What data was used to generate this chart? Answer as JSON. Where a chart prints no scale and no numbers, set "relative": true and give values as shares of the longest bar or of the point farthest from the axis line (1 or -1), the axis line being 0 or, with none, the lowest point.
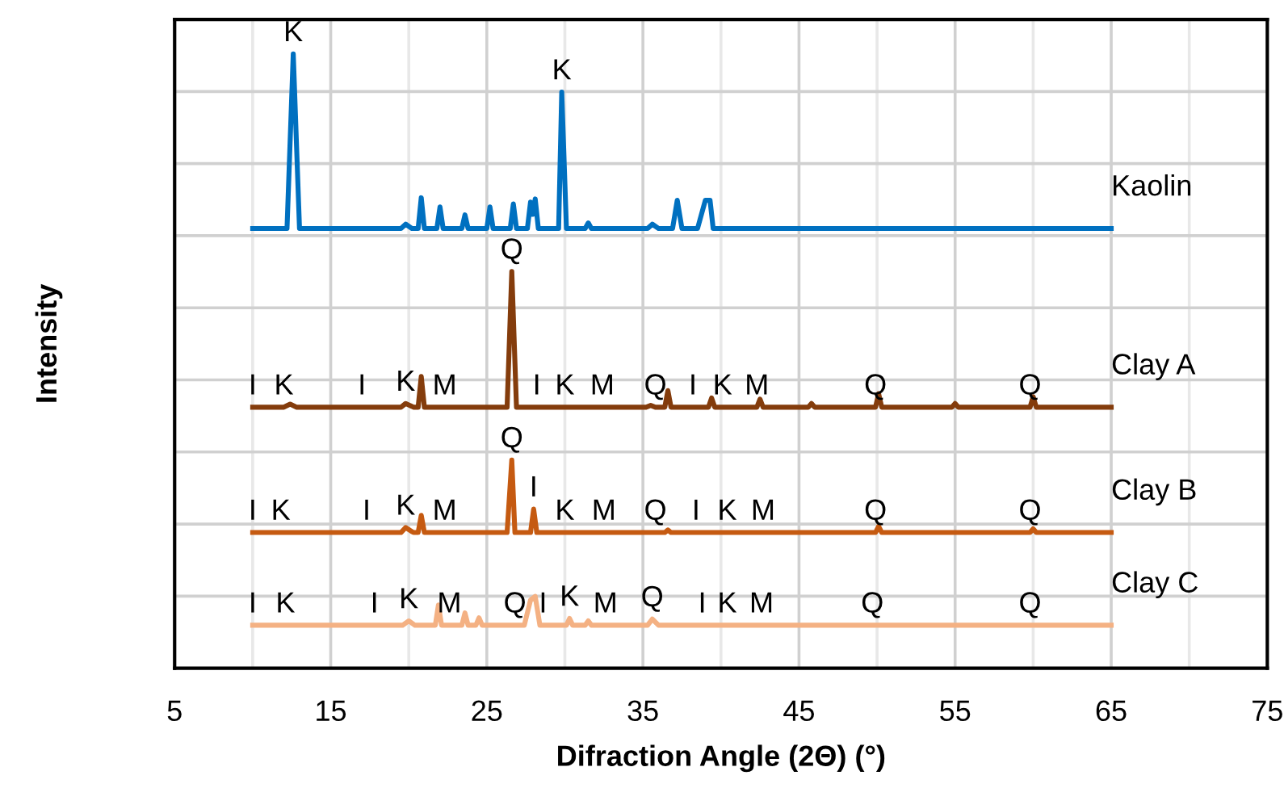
{
  "chart_data": {
    "type": "line",
    "relative": true,
    "xlabel": "Difraction Angle (2Θ) (°)",
    "ylabel": "Intensity",
    "xlim": [
      5,
      75
    ],
    "xticks": [
      5,
      15,
      25,
      35,
      45,
      55,
      65,
      75
    ],
    "grid": true,
    "legend": false,
    "marker": "none",
    "line_style": "solid",
    "tick_labels": "x",
    "series": [
      {
        "name": "Kaolin",
        "color": "#0070c0",
        "x": [
          10,
          12.2,
          12.6,
          13.0,
          19.5,
          19.8,
          20.2,
          20.6,
          20.8,
          21.0,
          21.8,
          22.0,
          22.2,
          23.4,
          23.6,
          23.8,
          25.0,
          25.2,
          25.4,
          26.5,
          26.7,
          26.9,
          27.6,
          27.8,
          27.95,
          28.1,
          28.3,
          29.6,
          29.8,
          30.1,
          31.3,
          31.5,
          31.7,
          35.3,
          35.6,
          36.0,
          36.9,
          37.2,
          37.5,
          38.5,
          39.0,
          39.3,
          39.5,
          65
        ],
        "values": [
          0.716,
          0.716,
          1.0,
          0.716,
          0.716,
          0.723,
          0.716,
          0.716,
          0.766,
          0.716,
          0.716,
          0.751,
          0.716,
          0.716,
          0.738,
          0.716,
          0.716,
          0.751,
          0.716,
          0.716,
          0.756,
          0.716,
          0.716,
          0.759,
          0.739,
          0.764,
          0.716,
          0.716,
          0.938,
          0.716,
          0.716,
          0.725,
          0.716,
          0.716,
          0.723,
          0.716,
          0.716,
          0.762,
          0.716,
          0.716,
          0.762,
          0.762,
          0.716,
          0.716
        ]
      },
      {
        "name": "Clay A",
        "color": "#843c0c",
        "x": [
          10,
          12.0,
          12.4,
          12.8,
          17.0,
          19.5,
          19.8,
          20.3,
          20.6,
          20.8,
          21.0,
          22.3,
          26.3,
          26.6,
          26.9,
          28.2,
          30.0,
          32.4,
          35.2,
          35.5,
          35.8,
          36.4,
          36.6,
          36.8,
          38.2,
          39.2,
          39.4,
          39.6,
          40.1,
          42.3,
          42.5,
          42.7,
          45.6,
          45.8,
          46.0,
          49.9,
          50.1,
          50.3,
          54.8,
          55.0,
          55.2,
          59.8,
          60.0,
          60.2,
          65
        ],
        "values": [
          0.425,
          0.425,
          0.43,
          0.425,
          0.425,
          0.425,
          0.431,
          0.425,
          0.425,
          0.475,
          0.425,
          0.425,
          0.425,
          0.646,
          0.425,
          0.425,
          0.425,
          0.425,
          0.425,
          0.428,
          0.425,
          0.425,
          0.452,
          0.425,
          0.425,
          0.425,
          0.44,
          0.425,
          0.425,
          0.425,
          0.438,
          0.425,
          0.425,
          0.431,
          0.425,
          0.425,
          0.447,
          0.425,
          0.425,
          0.431,
          0.425,
          0.425,
          0.442,
          0.425,
          0.425
        ]
      },
      {
        "name": "Clay B",
        "color": "#c55a11",
        "x": [
          10,
          11.8,
          17.3,
          19.5,
          19.8,
          20.3,
          20.6,
          20.8,
          21.0,
          22.3,
          26.3,
          26.6,
          26.8,
          27.8,
          28.0,
          28.2,
          30.0,
          32.5,
          35.8,
          36.4,
          36.6,
          36.8,
          38.4,
          40.4,
          42.7,
          49.9,
          50.1,
          50.3,
          59.8,
          60.0,
          60.2,
          65
        ],
        "values": [
          0.221,
          0.221,
          0.221,
          0.221,
          0.229,
          0.221,
          0.221,
          0.249,
          0.221,
          0.221,
          0.221,
          0.339,
          0.221,
          0.221,
          0.259,
          0.221,
          0.221,
          0.221,
          0.221,
          0.221,
          0.225,
          0.221,
          0.221,
          0.221,
          0.221,
          0.221,
          0.231,
          0.221,
          0.221,
          0.227,
          0.221,
          0.221
        ]
      },
      {
        "name": "Clay C",
        "color": "#f4b183",
        "x": [
          10,
          12.1,
          17.8,
          19.6,
          20.0,
          20.4,
          21.7,
          21.9,
          22.1,
          22.6,
          23.4,
          23.6,
          23.8,
          24.3,
          24.5,
          24.7,
          26.8,
          27.4,
          27.8,
          28.1,
          28.4,
          28.6,
          30.1,
          30.3,
          30.5,
          31.3,
          31.5,
          31.7,
          32.6,
          35.3,
          35.6,
          36.0,
          38.8,
          40.4,
          42.6,
          49.7,
          59.8,
          65
        ],
        "values": [
          0.07,
          0.07,
          0.07,
          0.07,
          0.077,
          0.07,
          0.07,
          0.103,
          0.07,
          0.07,
          0.07,
          0.09,
          0.07,
          0.07,
          0.082,
          0.07,
          0.07,
          0.07,
          0.111,
          0.117,
          0.07,
          0.07,
          0.07,
          0.081,
          0.07,
          0.07,
          0.077,
          0.07,
          0.07,
          0.07,
          0.08,
          0.07,
          0.07,
          0.07,
          0.07,
          0.07,
          0.07,
          0.07
        ]
      }
    ],
    "annotations": [
      {
        "text": "K",
        "x": 12.6,
        "y": 1.0
      },
      {
        "text": "K",
        "x": 29.8,
        "y": 0.938
      },
      {
        "text": "I",
        "x": 10,
        "y": 0.425
      },
      {
        "text": "K",
        "x": 12.0,
        "y": 0.425
      },
      {
        "text": "I",
        "x": 17.0,
        "y": 0.425
      },
      {
        "text": "K",
        "x": 19.8,
        "y": 0.431
      },
      {
        "text": "M",
        "x": 22.3,
        "y": 0.425
      },
      {
        "text": "Q",
        "x": 26.6,
        "y": 0.646
      },
      {
        "text": "I",
        "x": 28.2,
        "y": 0.425
      },
      {
        "text": "K",
        "x": 30.0,
        "y": 0.425
      },
      {
        "text": "M",
        "x": 32.4,
        "y": 0.425
      },
      {
        "text": "Q",
        "x": 35.8,
        "y": 0.425
      },
      {
        "text": "I",
        "x": 38.2,
        "y": 0.425
      },
      {
        "text": "K",
        "x": 40.1,
        "y": 0.425
      },
      {
        "text": "M",
        "x": 42.3,
        "y": 0.425
      },
      {
        "text": "Q",
        "x": 49.9,
        "y": 0.425
      },
      {
        "text": "Q",
        "x": 59.8,
        "y": 0.425
      },
      {
        "text": "I",
        "x": 10,
        "y": 0.221
      },
      {
        "text": "K",
        "x": 11.8,
        "y": 0.221
      },
      {
        "text": "I",
        "x": 17.3,
        "y": 0.221
      },
      {
        "text": "K",
        "x": 19.8,
        "y": 0.229
      },
      {
        "text": "M",
        "x": 22.3,
        "y": 0.221
      },
      {
        "text": "Q",
        "x": 26.6,
        "y": 0.339
      },
      {
        "text": "I",
        "x": 28.0,
        "y": 0.259
      },
      {
        "text": "K",
        "x": 30.0,
        "y": 0.221
      },
      {
        "text": "M",
        "x": 32.5,
        "y": 0.221
      },
      {
        "text": "Q",
        "x": 35.8,
        "y": 0.221
      },
      {
        "text": "I",
        "x": 38.4,
        "y": 0.221
      },
      {
        "text": "K",
        "x": 40.4,
        "y": 0.221
      },
      {
        "text": "M",
        "x": 42.7,
        "y": 0.221
      },
      {
        "text": "Q",
        "x": 49.9,
        "y": 0.221
      },
      {
        "text": "Q",
        "x": 59.8,
        "y": 0.221
      },
      {
        "text": "I",
        "x": 10,
        "y": 0.07
      },
      {
        "text": "K",
        "x": 12.1,
        "y": 0.07
      },
      {
        "text": "I",
        "x": 17.8,
        "y": 0.07
      },
      {
        "text": "K",
        "x": 20.0,
        "y": 0.077
      },
      {
        "text": "M",
        "x": 22.6,
        "y": 0.07
      },
      {
        "text": "Q",
        "x": 26.8,
        "y": 0.07
      },
      {
        "text": "I",
        "x": 28.6,
        "y": 0.07
      },
      {
        "text": "K",
        "x": 30.3,
        "y": 0.081
      },
      {
        "text": "M",
        "x": 32.6,
        "y": 0.07
      },
      {
        "text": "Q",
        "x": 35.6,
        "y": 0.08
      },
      {
        "text": "I",
        "x": 38.8,
        "y": 0.07
      },
      {
        "text": "K",
        "x": 40.4,
        "y": 0.07
      },
      {
        "text": "M",
        "x": 42.6,
        "y": 0.07
      },
      {
        "text": "Q",
        "x": 49.7,
        "y": 0.07
      },
      {
        "text": "Q",
        "x": 59.8,
        "y": 0.07
      }
    ]
  }
}
